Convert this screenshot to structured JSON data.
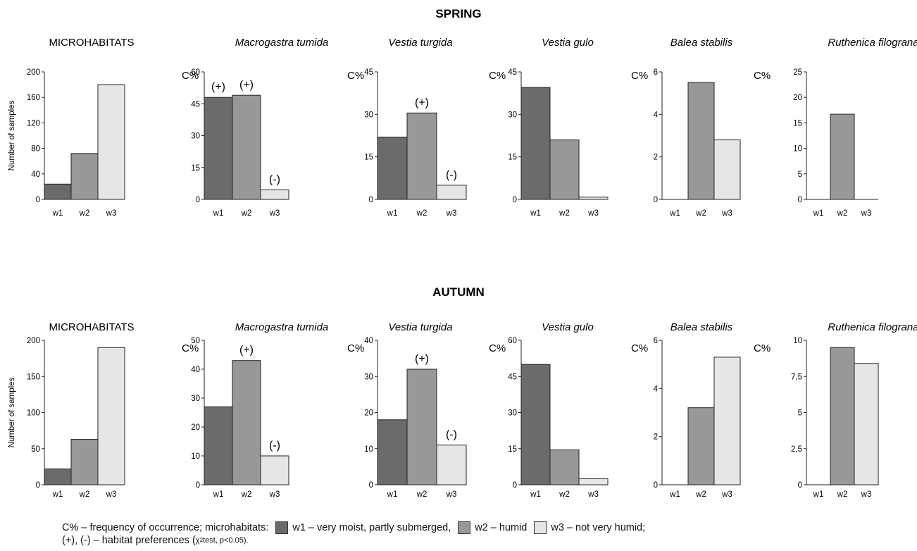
{
  "season_titles": [
    "SPRING",
    "AUTUMN"
  ],
  "colors": {
    "w1": "#6b6b6e",
    "w2": "#98989b",
    "w3": "#e6e6e8"
  },
  "chart_data": [
    {
      "type": "bar",
      "season": "SPRING",
      "title": "MICROHABITATS",
      "title_italic": false,
      "ylabel": "Number of samples",
      "categories": [
        "w1",
        "w2",
        "w3"
      ],
      "values": [
        24,
        72,
        180
      ],
      "ylim": [
        0,
        200
      ],
      "yticks": [
        "0",
        "40",
        "80",
        "120",
        "160",
        "200"
      ],
      "yticklabels": [
        "0",
        "40",
        "80",
        "120",
        "160",
        "200"
      ],
      "annotations": [
        "",
        "",
        ""
      ]
    },
    {
      "type": "bar",
      "season": "SPRING",
      "title": "Macrogastra tumida",
      "title_italic": true,
      "ylabel": "C%",
      "categories": [
        "w1",
        "w2",
        "w3"
      ],
      "values": [
        48,
        49,
        4.5
      ],
      "ylim": [
        0,
        60
      ],
      "yticks": [
        "0",
        "15",
        "30",
        "45",
        "60"
      ],
      "yticklabels": [
        "0",
        "15",
        "30",
        "45",
        "60"
      ],
      "annotations": [
        "(+)",
        "(+)",
        "(-)"
      ]
    },
    {
      "type": "bar",
      "season": "SPRING",
      "title": "Vestia turgida",
      "title_italic": true,
      "ylabel": "C%",
      "categories": [
        "w1",
        "w2",
        "w3"
      ],
      "values": [
        22,
        30.5,
        5
      ],
      "ylim": [
        0,
        45
      ],
      "yticks": [
        "0",
        "15",
        "30",
        "45"
      ],
      "yticklabels": [
        "0",
        "15",
        "30",
        "45"
      ],
      "annotations": [
        "",
        "(+)",
        "(-)"
      ]
    },
    {
      "type": "bar",
      "season": "SPRING",
      "title": "Vestia gulo",
      "title_italic": true,
      "ylabel": "C%",
      "categories": [
        "w1",
        "w2",
        "w3"
      ],
      "values": [
        39.5,
        21,
        0.8
      ],
      "ylim": [
        0,
        45
      ],
      "yticks": [
        "0",
        "15",
        "30",
        "45"
      ],
      "yticklabels": [
        "0",
        "15",
        "30",
        "45"
      ],
      "annotations": [
        "",
        "",
        ""
      ]
    },
    {
      "type": "bar",
      "season": "SPRING",
      "title": "Balea stabilis",
      "title_italic": true,
      "ylabel": "C%",
      "categories": [
        "w1",
        "w2",
        "w3"
      ],
      "values": [
        0,
        5.5,
        2.8
      ],
      "ylim": [
        0,
        6
      ],
      "yticks": [
        "0",
        "2",
        "4",
        "6"
      ],
      "yticklabels": [
        "0",
        "2",
        "4",
        "6"
      ],
      "annotations": [
        "",
        "",
        ""
      ]
    },
    {
      "type": "bar",
      "season": "SPRING",
      "title": "Ruthenica filograna",
      "title_italic": true,
      "ylabel": "C%",
      "categories": [
        "w1",
        "w2",
        "w3"
      ],
      "values": [
        0,
        16.7,
        0
      ],
      "ylim": [
        0,
        25
      ],
      "yticks": [
        "0",
        "5",
        "10",
        "15",
        "20",
        "25"
      ],
      "yticklabels": [
        "0",
        "5",
        "10",
        "15",
        "20",
        "25"
      ],
      "annotations": [
        "",
        "",
        ""
      ]
    },
    {
      "type": "bar",
      "season": "AUTUMN",
      "title": "MICROHABITATS",
      "title_italic": false,
      "ylabel": "Number of samples",
      "categories": [
        "w1",
        "w2",
        "w3"
      ],
      "values": [
        22,
        63,
        190
      ],
      "ylim": [
        0,
        200
      ],
      "yticks": [
        "0",
        "50",
        "100",
        "150",
        "200"
      ],
      "yticklabels": [
        "0",
        "50",
        "100",
        "150",
        "200"
      ],
      "annotations": [
        "",
        "",
        ""
      ]
    },
    {
      "type": "bar",
      "season": "AUTUMN",
      "title": "Macrogastra tumida",
      "title_italic": true,
      "ylabel": "C%",
      "categories": [
        "w1",
        "w2",
        "w3"
      ],
      "values": [
        27,
        43,
        10
      ],
      "ylim": [
        0,
        50
      ],
      "yticks": [
        "0",
        "10",
        "20",
        "30",
        "40",
        "50"
      ],
      "yticklabels": [
        "0",
        "10",
        "20",
        "30",
        "40",
        "50"
      ],
      "annotations": [
        "",
        "(+)",
        "(-)"
      ]
    },
    {
      "type": "bar",
      "season": "AUTUMN",
      "title": "Vestia turgida",
      "title_italic": true,
      "ylabel": "C%",
      "categories": [
        "w1",
        "w2",
        "w3"
      ],
      "values": [
        18,
        32,
        11
      ],
      "ylim": [
        0,
        40
      ],
      "yticks": [
        "0",
        "10",
        "20",
        "30",
        "40"
      ],
      "yticklabels": [
        "0",
        "10",
        "20",
        "30",
        "40"
      ],
      "annotations": [
        "",
        "(+)",
        "(-)"
      ]
    },
    {
      "type": "bar",
      "season": "AUTUMN",
      "title": "Vestia gulo",
      "title_italic": true,
      "ylabel": "C%",
      "categories": [
        "w1",
        "w2",
        "w3"
      ],
      "values": [
        50,
        14.5,
        2.5
      ],
      "ylim": [
        0,
        60
      ],
      "yticks": [
        "0",
        "15",
        "30",
        "45",
        "60"
      ],
      "yticklabels": [
        "0",
        "15",
        "30",
        "45",
        "60"
      ],
      "annotations": [
        "",
        "",
        ""
      ]
    },
    {
      "type": "bar",
      "season": "AUTUMN",
      "title": "Balea stabilis",
      "title_italic": true,
      "ylabel": "C%",
      "categories": [
        "w1",
        "w2",
        "w3"
      ],
      "values": [
        0,
        3.2,
        5.3
      ],
      "ylim": [
        0,
        6
      ],
      "yticks": [
        "0",
        "2",
        "4",
        "6"
      ],
      "yticklabels": [
        "0",
        "2",
        "4",
        "6"
      ],
      "annotations": [
        "",
        "",
        ""
      ]
    },
    {
      "type": "bar",
      "season": "AUTUMN",
      "title": "Ruthenica filograna",
      "title_italic": true,
      "ylabel": "C%",
      "categories": [
        "w1",
        "w2",
        "w3"
      ],
      "values": [
        0,
        9.5,
        8.4
      ],
      "ylim": [
        0,
        10
      ],
      "yticks": [
        "0",
        "2.5",
        "5",
        "7.5",
        "10"
      ],
      "yticklabels": [
        "0",
        "2,5",
        "5",
        "7,5",
        "10"
      ],
      "annotations": [
        "",
        "",
        ""
      ]
    }
  ],
  "legend": {
    "prefix": "C% – frequency of occurrence; microhabitats:",
    "w1": "w1 – very moist, partly submerged,",
    "w2": "w2 – humid",
    "w3": "w3 – not very humid;",
    "line2_start": "(+), (-) – habitat preferences (",
    "chi": "χ",
    "chi_sup": "2",
    "chi_rest": " test, p<0.05)."
  }
}
